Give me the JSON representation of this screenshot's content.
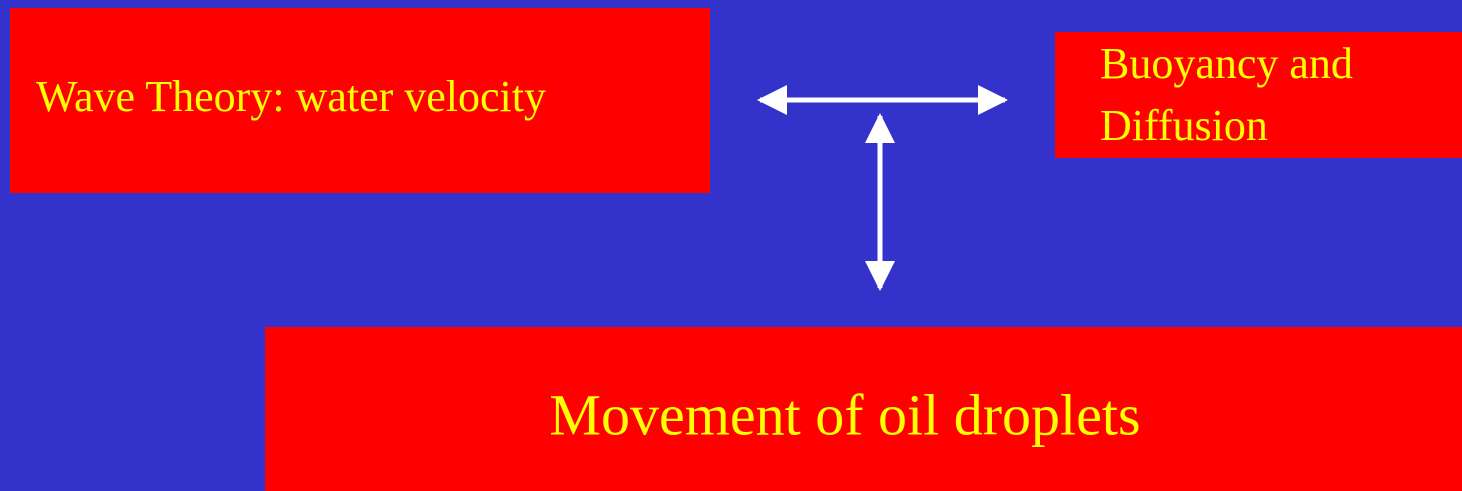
{
  "nodes": [
    {
      "label": "Wave Theory: water velocity"
    },
    {
      "lines": [
        "Buoyancy and",
        "Diffusion"
      ]
    },
    {
      "label": "Movement of oil droplets"
    }
  ]
}
